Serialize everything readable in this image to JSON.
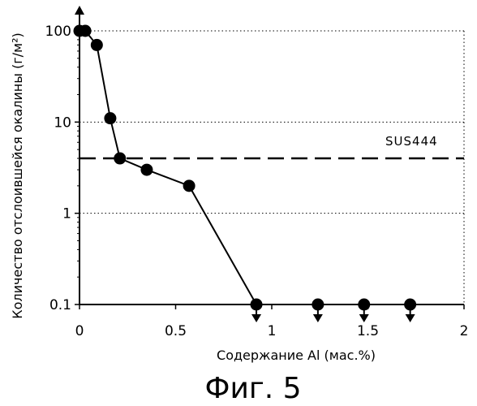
{
  "chart_data": {
    "type": "scatter",
    "title": "",
    "xlabel": "Содержание Al (мас.%)",
    "ylabel": "Количество отслоившейся окалины (г/м²)",
    "xlim": [
      0,
      2
    ],
    "ylim": [
      0.1,
      100
    ],
    "y_scale": "log",
    "grid": "dotted horizontal lines at 1 and 10",
    "x_ticks": [
      "0",
      "0.5",
      "1",
      "1.5",
      "2"
    ],
    "y_ticks": [
      "0.1",
      "1",
      "10",
      "100"
    ],
    "series": [
      {
        "line": true,
        "points": [
          {
            "x": 0.0,
            "y": 100,
            "arrow": "up"
          },
          {
            "x": 0.03,
            "y": 100,
            "arrow": "none"
          },
          {
            "x": 0.09,
            "y": 70,
            "arrow": "none"
          },
          {
            "x": 0.16,
            "y": 11,
            "arrow": "none"
          },
          {
            "x": 0.21,
            "y": 4,
            "arrow": "none"
          },
          {
            "x": 0.35,
            "y": 3,
            "arrow": "none"
          },
          {
            "x": 0.57,
            "y": 2,
            "arrow": "none"
          },
          {
            "x": 0.92,
            "y": 0.1,
            "arrow": "down"
          },
          {
            "x": 1.24,
            "y": 0.1,
            "arrow": "down"
          },
          {
            "x": 1.48,
            "y": 0.1,
            "arrow": "down"
          },
          {
            "x": 1.72,
            "y": 0.1,
            "arrow": "down"
          }
        ]
      }
    ],
    "reference_line": {
      "label": "SUS444",
      "y": 4,
      "style": "dashed"
    }
  },
  "caption": "Фиг. 5"
}
